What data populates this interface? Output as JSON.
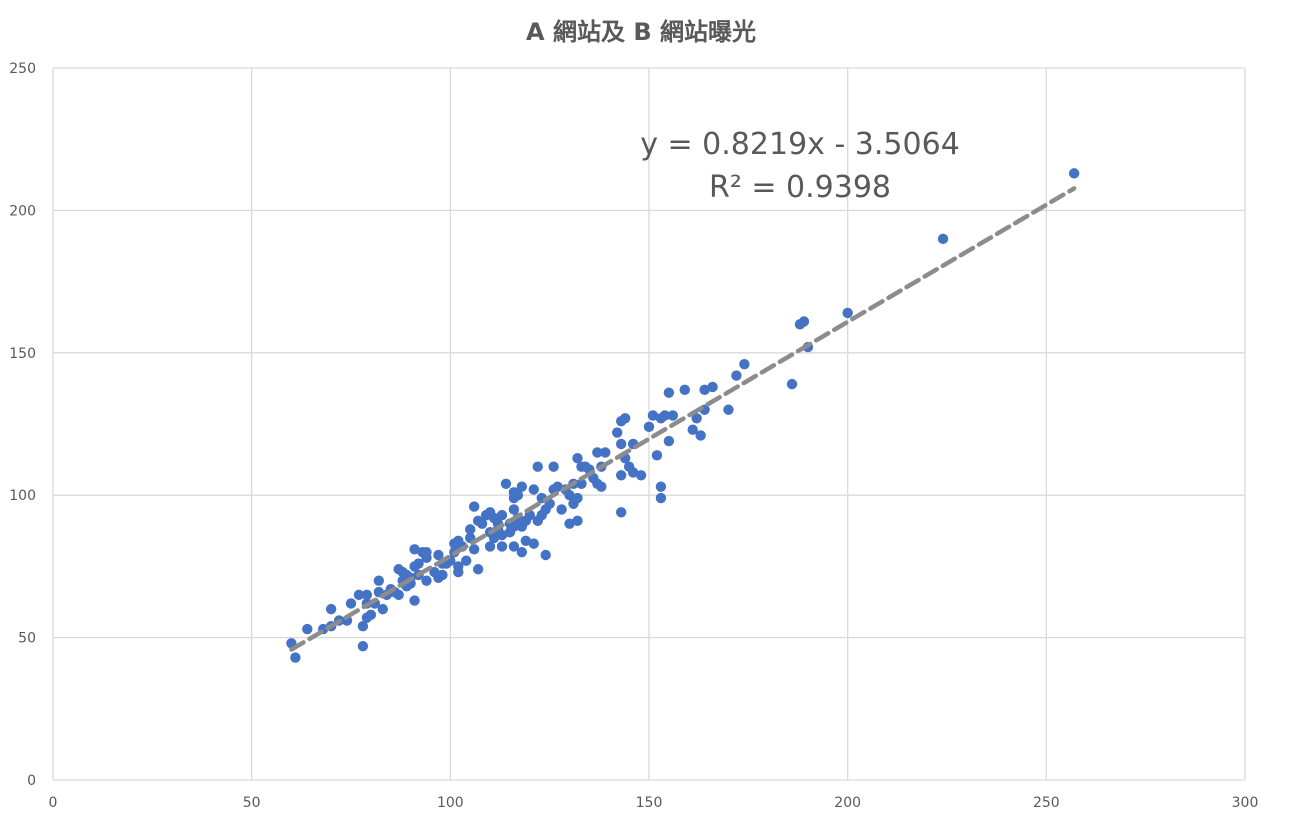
{
  "chart_data": {
    "type": "scatter",
    "title": "A 網站及 B 網站曝光",
    "xlabel": "",
    "ylabel": "",
    "xlim": [
      0,
      300
    ],
    "ylim": [
      0,
      250
    ],
    "x_ticks": [
      "0",
      "50",
      "100",
      "150",
      "200",
      "250",
      "300"
    ],
    "y_ticks": [
      "0",
      "50",
      "100",
      "150",
      "200",
      "250"
    ],
    "grid": true,
    "legend": "none",
    "colors": {
      "points": "#4472C4",
      "trendline": "#8C8C8C",
      "grid": "#D9D9D9",
      "text": "#595959"
    },
    "trendline": {
      "type": "linear",
      "slope": 0.8219,
      "intercept": -3.5064,
      "r_squared": 0.9398,
      "x_range": [
        60,
        257
      ],
      "equation_label": "y = 0.8219x - 3.5064",
      "r2_label": "R² = 0.9398"
    },
    "series": [
      {
        "points": [
          [
            60,
            48
          ],
          [
            61,
            43
          ],
          [
            64,
            53
          ],
          [
            68,
            53
          ],
          [
            70,
            54
          ],
          [
            70,
            60
          ],
          [
            72,
            56
          ],
          [
            74,
            56
          ],
          [
            75,
            62
          ],
          [
            77,
            65
          ],
          [
            78,
            47
          ],
          [
            78,
            54
          ],
          [
            79,
            57
          ],
          [
            79,
            62
          ],
          [
            79,
            65
          ],
          [
            80,
            58
          ],
          [
            81,
            62
          ],
          [
            82,
            70
          ],
          [
            82,
            66
          ],
          [
            83,
            60
          ],
          [
            84,
            65
          ],
          [
            85,
            67
          ],
          [
            86,
            66
          ],
          [
            87,
            74
          ],
          [
            87,
            65
          ],
          [
            88,
            70
          ],
          [
            88,
            73
          ],
          [
            89,
            68
          ],
          [
            89,
            72
          ],
          [
            90,
            69
          ],
          [
            90,
            71
          ],
          [
            91,
            81
          ],
          [
            91,
            63
          ],
          [
            91,
            75
          ],
          [
            92,
            72
          ],
          [
            92,
            76
          ],
          [
            93,
            80
          ],
          [
            94,
            70
          ],
          [
            94,
            78
          ],
          [
            94,
            80
          ],
          [
            96,
            73
          ],
          [
            97,
            79
          ],
          [
            97,
            71
          ],
          [
            98,
            76
          ],
          [
            98,
            72
          ],
          [
            99,
            76
          ],
          [
            100,
            77
          ],
          [
            101,
            83
          ],
          [
            101,
            80
          ],
          [
            102,
            84
          ],
          [
            102,
            75
          ],
          [
            102,
            73
          ],
          [
            103,
            82
          ],
          [
            104,
            77
          ],
          [
            105,
            88
          ],
          [
            105,
            85
          ],
          [
            106,
            96
          ],
          [
            106,
            81
          ],
          [
            107,
            74
          ],
          [
            107,
            91
          ],
          [
            108,
            90
          ],
          [
            109,
            93
          ],
          [
            110,
            87
          ],
          [
            110,
            94
          ],
          [
            110,
            82
          ],
          [
            111,
            85
          ],
          [
            111,
            92
          ],
          [
            112,
            88
          ],
          [
            112,
            90
          ],
          [
            113,
            86
          ],
          [
            113,
            93
          ],
          [
            113,
            82
          ],
          [
            114,
            104
          ],
          [
            115,
            90
          ],
          [
            115,
            87
          ],
          [
            116,
            99
          ],
          [
            116,
            101
          ],
          [
            116,
            95
          ],
          [
            116,
            89
          ],
          [
            116,
            82
          ],
          [
            117,
            92
          ],
          [
            117,
            100
          ],
          [
            118,
            103
          ],
          [
            118,
            80
          ],
          [
            118,
            89
          ],
          [
            119,
            91
          ],
          [
            119,
            84
          ],
          [
            120,
            93
          ],
          [
            121,
            102
          ],
          [
            121,
            83
          ],
          [
            122,
            110
          ],
          [
            122,
            91
          ],
          [
            123,
            93
          ],
          [
            123,
            99
          ],
          [
            124,
            79
          ],
          [
            124,
            95
          ],
          [
            125,
            97
          ],
          [
            126,
            110
          ],
          [
            126,
            102
          ],
          [
            127,
            103
          ],
          [
            128,
            95
          ],
          [
            129,
            102
          ],
          [
            130,
            90
          ],
          [
            130,
            100
          ],
          [
            131,
            97
          ],
          [
            131,
            104
          ],
          [
            132,
            113
          ],
          [
            132,
            91
          ],
          [
            132,
            99
          ],
          [
            133,
            110
          ],
          [
            133,
            104
          ],
          [
            134,
            110
          ],
          [
            135,
            109
          ],
          [
            136,
            106
          ],
          [
            137,
            115
          ],
          [
            137,
            104
          ],
          [
            138,
            103
          ],
          [
            138,
            110
          ],
          [
            139,
            115
          ],
          [
            142,
            122
          ],
          [
            143,
            126
          ],
          [
            143,
            118
          ],
          [
            143,
            107
          ],
          [
            143,
            94
          ],
          [
            144,
            127
          ],
          [
            144,
            113
          ],
          [
            145,
            110
          ],
          [
            146,
            118
          ],
          [
            146,
            108
          ],
          [
            148,
            107
          ],
          [
            150,
            124
          ],
          [
            151,
            128
          ],
          [
            152,
            114
          ],
          [
            153,
            127
          ],
          [
            153,
            103
          ],
          [
            153,
            99
          ],
          [
            154,
            128
          ],
          [
            155,
            136
          ],
          [
            155,
            119
          ],
          [
            156,
            128
          ],
          [
            159,
            137
          ],
          [
            161,
            123
          ],
          [
            162,
            127
          ],
          [
            163,
            121
          ],
          [
            164,
            130
          ],
          [
            164,
            137
          ],
          [
            166,
            138
          ],
          [
            170,
            130
          ],
          [
            172,
            142
          ],
          [
            174,
            146
          ],
          [
            186,
            139
          ],
          [
            188,
            160
          ],
          [
            189,
            161
          ],
          [
            190,
            152
          ],
          [
            200,
            164
          ],
          [
            224,
            190
          ],
          [
            257,
            213
          ]
        ]
      }
    ],
    "annotations": [
      "y = 0.8219x - 3.5064",
      "R² = 0.9398"
    ]
  }
}
